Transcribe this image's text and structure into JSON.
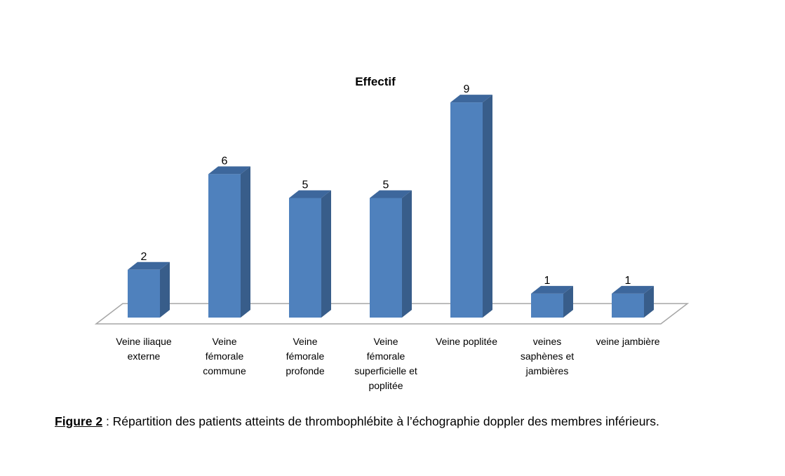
{
  "chart_data": {
    "type": "bar",
    "title": "Effectif",
    "categories": [
      "Veine iliaque\nexterne",
      "Veine\nfémorale\ncommune",
      "Veine\nfémorale\nprofonde",
      "Veine\nfémorale\nsuperficielle et\npoplitée",
      "Veine poplitée",
      "veines\nsaphènes et\njambières",
      "veine jambière"
    ],
    "values": [
      2,
      6,
      5,
      5,
      9,
      1,
      1
    ],
    "color": "#4f81bd"
  },
  "caption": {
    "label": "Figure 2",
    "text": " : Répartition des patients atteints de thrombophlébite à l’échographie doppler des membres inférieurs."
  }
}
